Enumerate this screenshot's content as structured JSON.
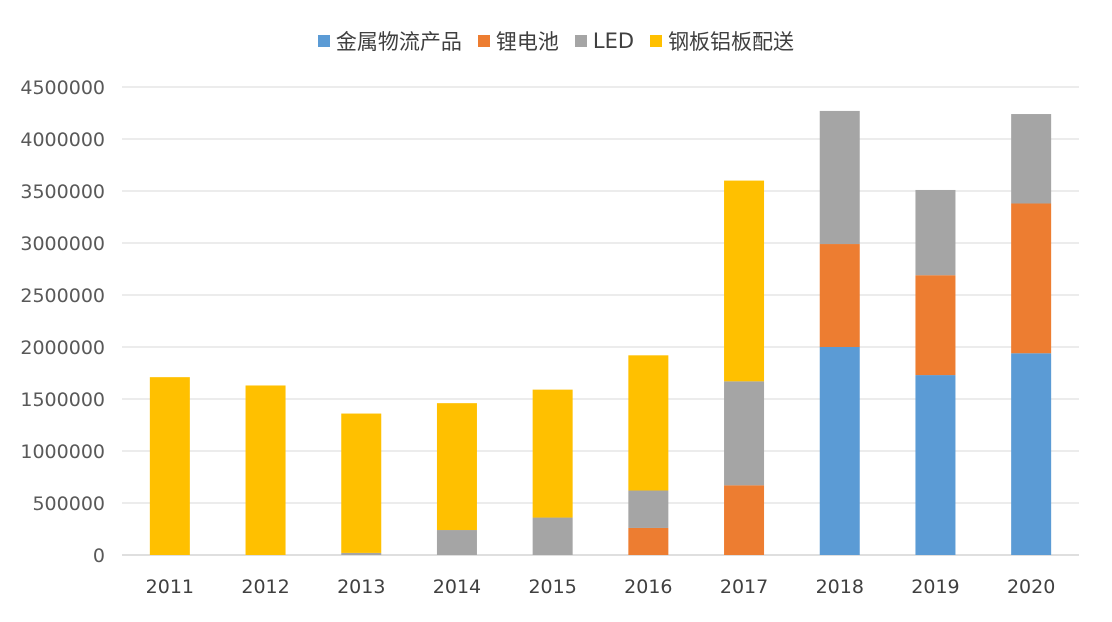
{
  "chart_data": {
    "type": "bar",
    "stacked": true,
    "categories": [
      "2011",
      "2012",
      "2013",
      "2014",
      "2015",
      "2016",
      "2017",
      "2018",
      "2019",
      "2020"
    ],
    "series": [
      {
        "name": "金属物流产品",
        "color": "#5b9bd5",
        "values": [
          0,
          0,
          0,
          0,
          0,
          0,
          0,
          2000000,
          1730000,
          1940000
        ]
      },
      {
        "name": "锂电池",
        "color": "#ed7d31",
        "values": [
          0,
          0,
          0,
          0,
          0,
          260000,
          670000,
          990000,
          960000,
          1440000
        ]
      },
      {
        "name": "LED",
        "color": "#a5a5a5",
        "values": [
          0,
          0,
          20000,
          240000,
          360000,
          360000,
          1000000,
          1280000,
          820000,
          860000
        ]
      },
      {
        "name": "钢板铝板配送",
        "color": "#ffc000",
        "values": [
          1710000,
          1630000,
          1340000,
          1220000,
          1230000,
          1300000,
          1930000,
          0,
          0,
          0
        ]
      }
    ],
    "yticks": [
      "0",
      "500000",
      "1000000",
      "1500000",
      "2000000",
      "2500000",
      "3000000",
      "3500000",
      "4000000",
      "4500000"
    ],
    "ylim": [
      0,
      4500000
    ],
    "grid": true,
    "legend_position": "top"
  }
}
